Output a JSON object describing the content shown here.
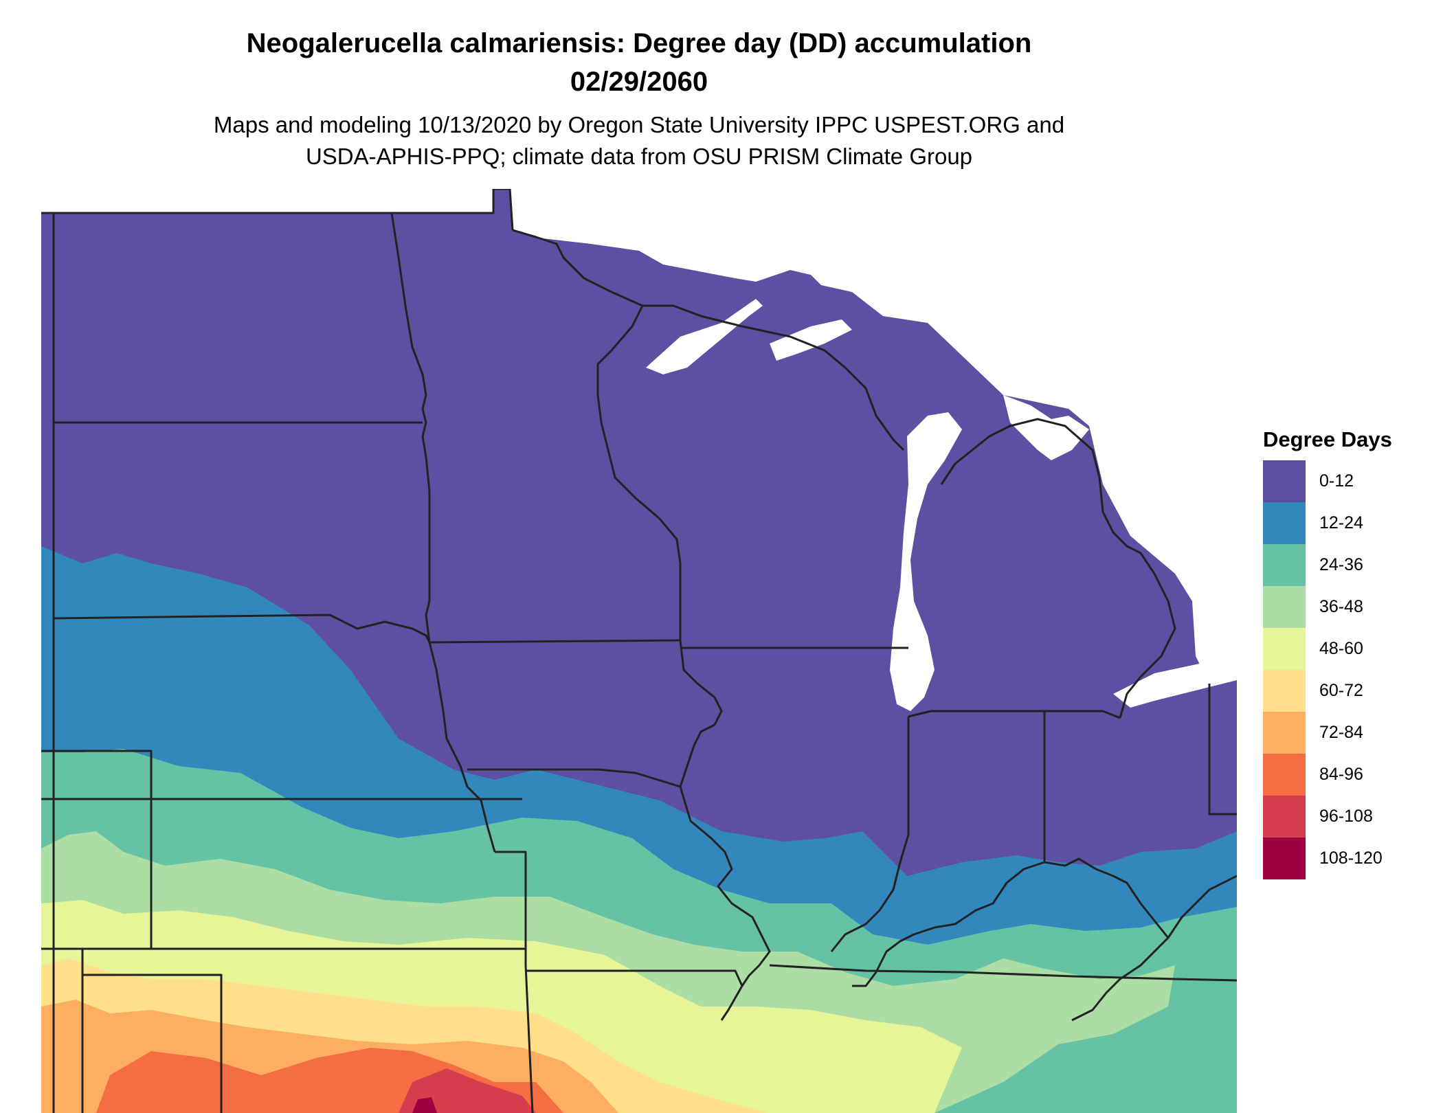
{
  "title_line1": "Neogalerucella calmariensis: Degree day (DD) accumulation",
  "title_line2": "02/29/2060",
  "subtitle_line1": "Maps and modeling 10/13/2020 by Oregon State University IPPC USPEST.ORG and",
  "subtitle_line2": "USDA-APHIS-PPQ; climate data from OSU PRISM Climate Group",
  "legend": {
    "title": "Degree Days",
    "items": [
      {
        "label": "0-12",
        "color": "#5e4fa2"
      },
      {
        "label": "12-24",
        "color": "#3288bd"
      },
      {
        "label": "24-36",
        "color": "#66c2a5"
      },
      {
        "label": "36-48",
        "color": "#abdda4"
      },
      {
        "label": "48-60",
        "color": "#e6f598"
      },
      {
        "label": "60-72",
        "color": "#fee08b"
      },
      {
        "label": "72-84",
        "color": "#fdae61"
      },
      {
        "label": "84-96",
        "color": "#f46d43"
      },
      {
        "label": "96-108",
        "color": "#d53e4f"
      },
      {
        "label": "108-120",
        "color": "#9e0142"
      }
    ]
  },
  "colors": {
    "border": "#222222",
    "water": "#ffffff"
  }
}
